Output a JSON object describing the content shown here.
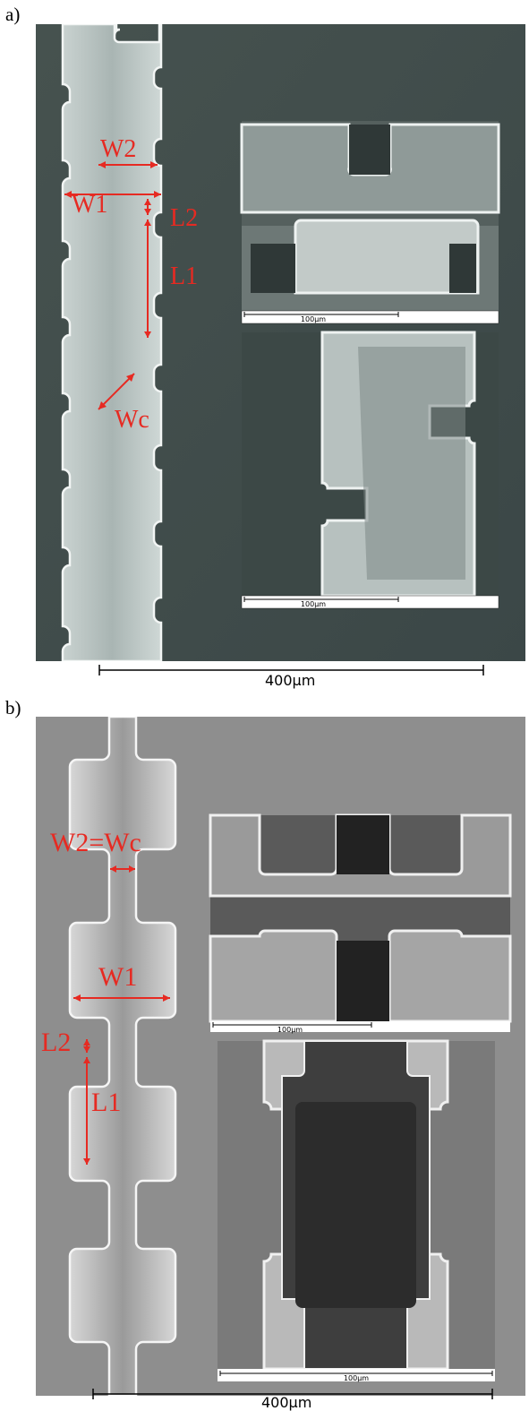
{
  "figure": {
    "panel_a": {
      "label": "a)",
      "annotations": {
        "w2": "W2",
        "w1": "W1",
        "l2": "L2",
        "l1": "L1",
        "wc": "Wc"
      },
      "inset_top_scale": "100µm",
      "inset_bottom_scale": "100µm",
      "scale_bar": "400µm"
    },
    "panel_b": {
      "label": "b)",
      "annotations": {
        "w2_wc": "W2=Wc",
        "w1": "W1",
        "l2": "L2",
        "l1": "L1"
      },
      "inset_top_scale": "100µm",
      "inset_bottom_scale": "100µm",
      "scale_bar": "400µm"
    }
  },
  "colors": {
    "annotation": "#e62a22",
    "sem_bg_a": "#3f4c4c",
    "sem_bg_b": "#8c8c8c",
    "channel_edge": "#f2f5f4"
  }
}
